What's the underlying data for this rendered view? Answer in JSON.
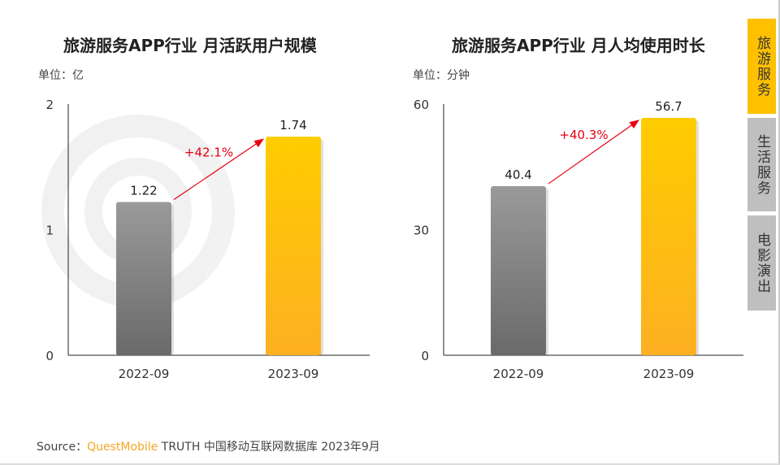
{
  "chart_data": [
    {
      "type": "bar",
      "title": "旅游服务APP行业 月活跃用户规模",
      "unit": "单位：亿",
      "categories": [
        "2022-09",
        "2023-09"
      ],
      "values": [
        1.22,
        1.74
      ],
      "ylim": [
        0,
        2
      ],
      "yticks": [
        0,
        1,
        2
      ],
      "growth_label": "+42.1%",
      "colors": [
        "#7a7a7a",
        "#ffc000"
      ]
    },
    {
      "type": "bar",
      "title": "旅游服务APP行业 月人均使用时长",
      "unit": "单位：分钟",
      "categories": [
        "2022-09",
        "2023-09"
      ],
      "values": [
        40.4,
        56.7
      ],
      "ylim": [
        0,
        60
      ],
      "yticks": [
        0,
        30,
        60
      ],
      "growth_label": "+40.3%",
      "colors": [
        "#7a7a7a",
        "#ffc000"
      ]
    }
  ],
  "tabs": [
    {
      "label": "旅游服务",
      "active": true
    },
    {
      "label": "生活服务",
      "active": false
    },
    {
      "label": "电影演出",
      "active": false
    }
  ],
  "source": {
    "prefix": "Source：",
    "brand": "QuestMobile",
    "rest": " TRUTH 中国移动互联网数据库 2023年9月"
  },
  "colors": {
    "accent": "#ffc000",
    "inactive_tab": "#bfbfbf",
    "arrow": "#e60012"
  }
}
